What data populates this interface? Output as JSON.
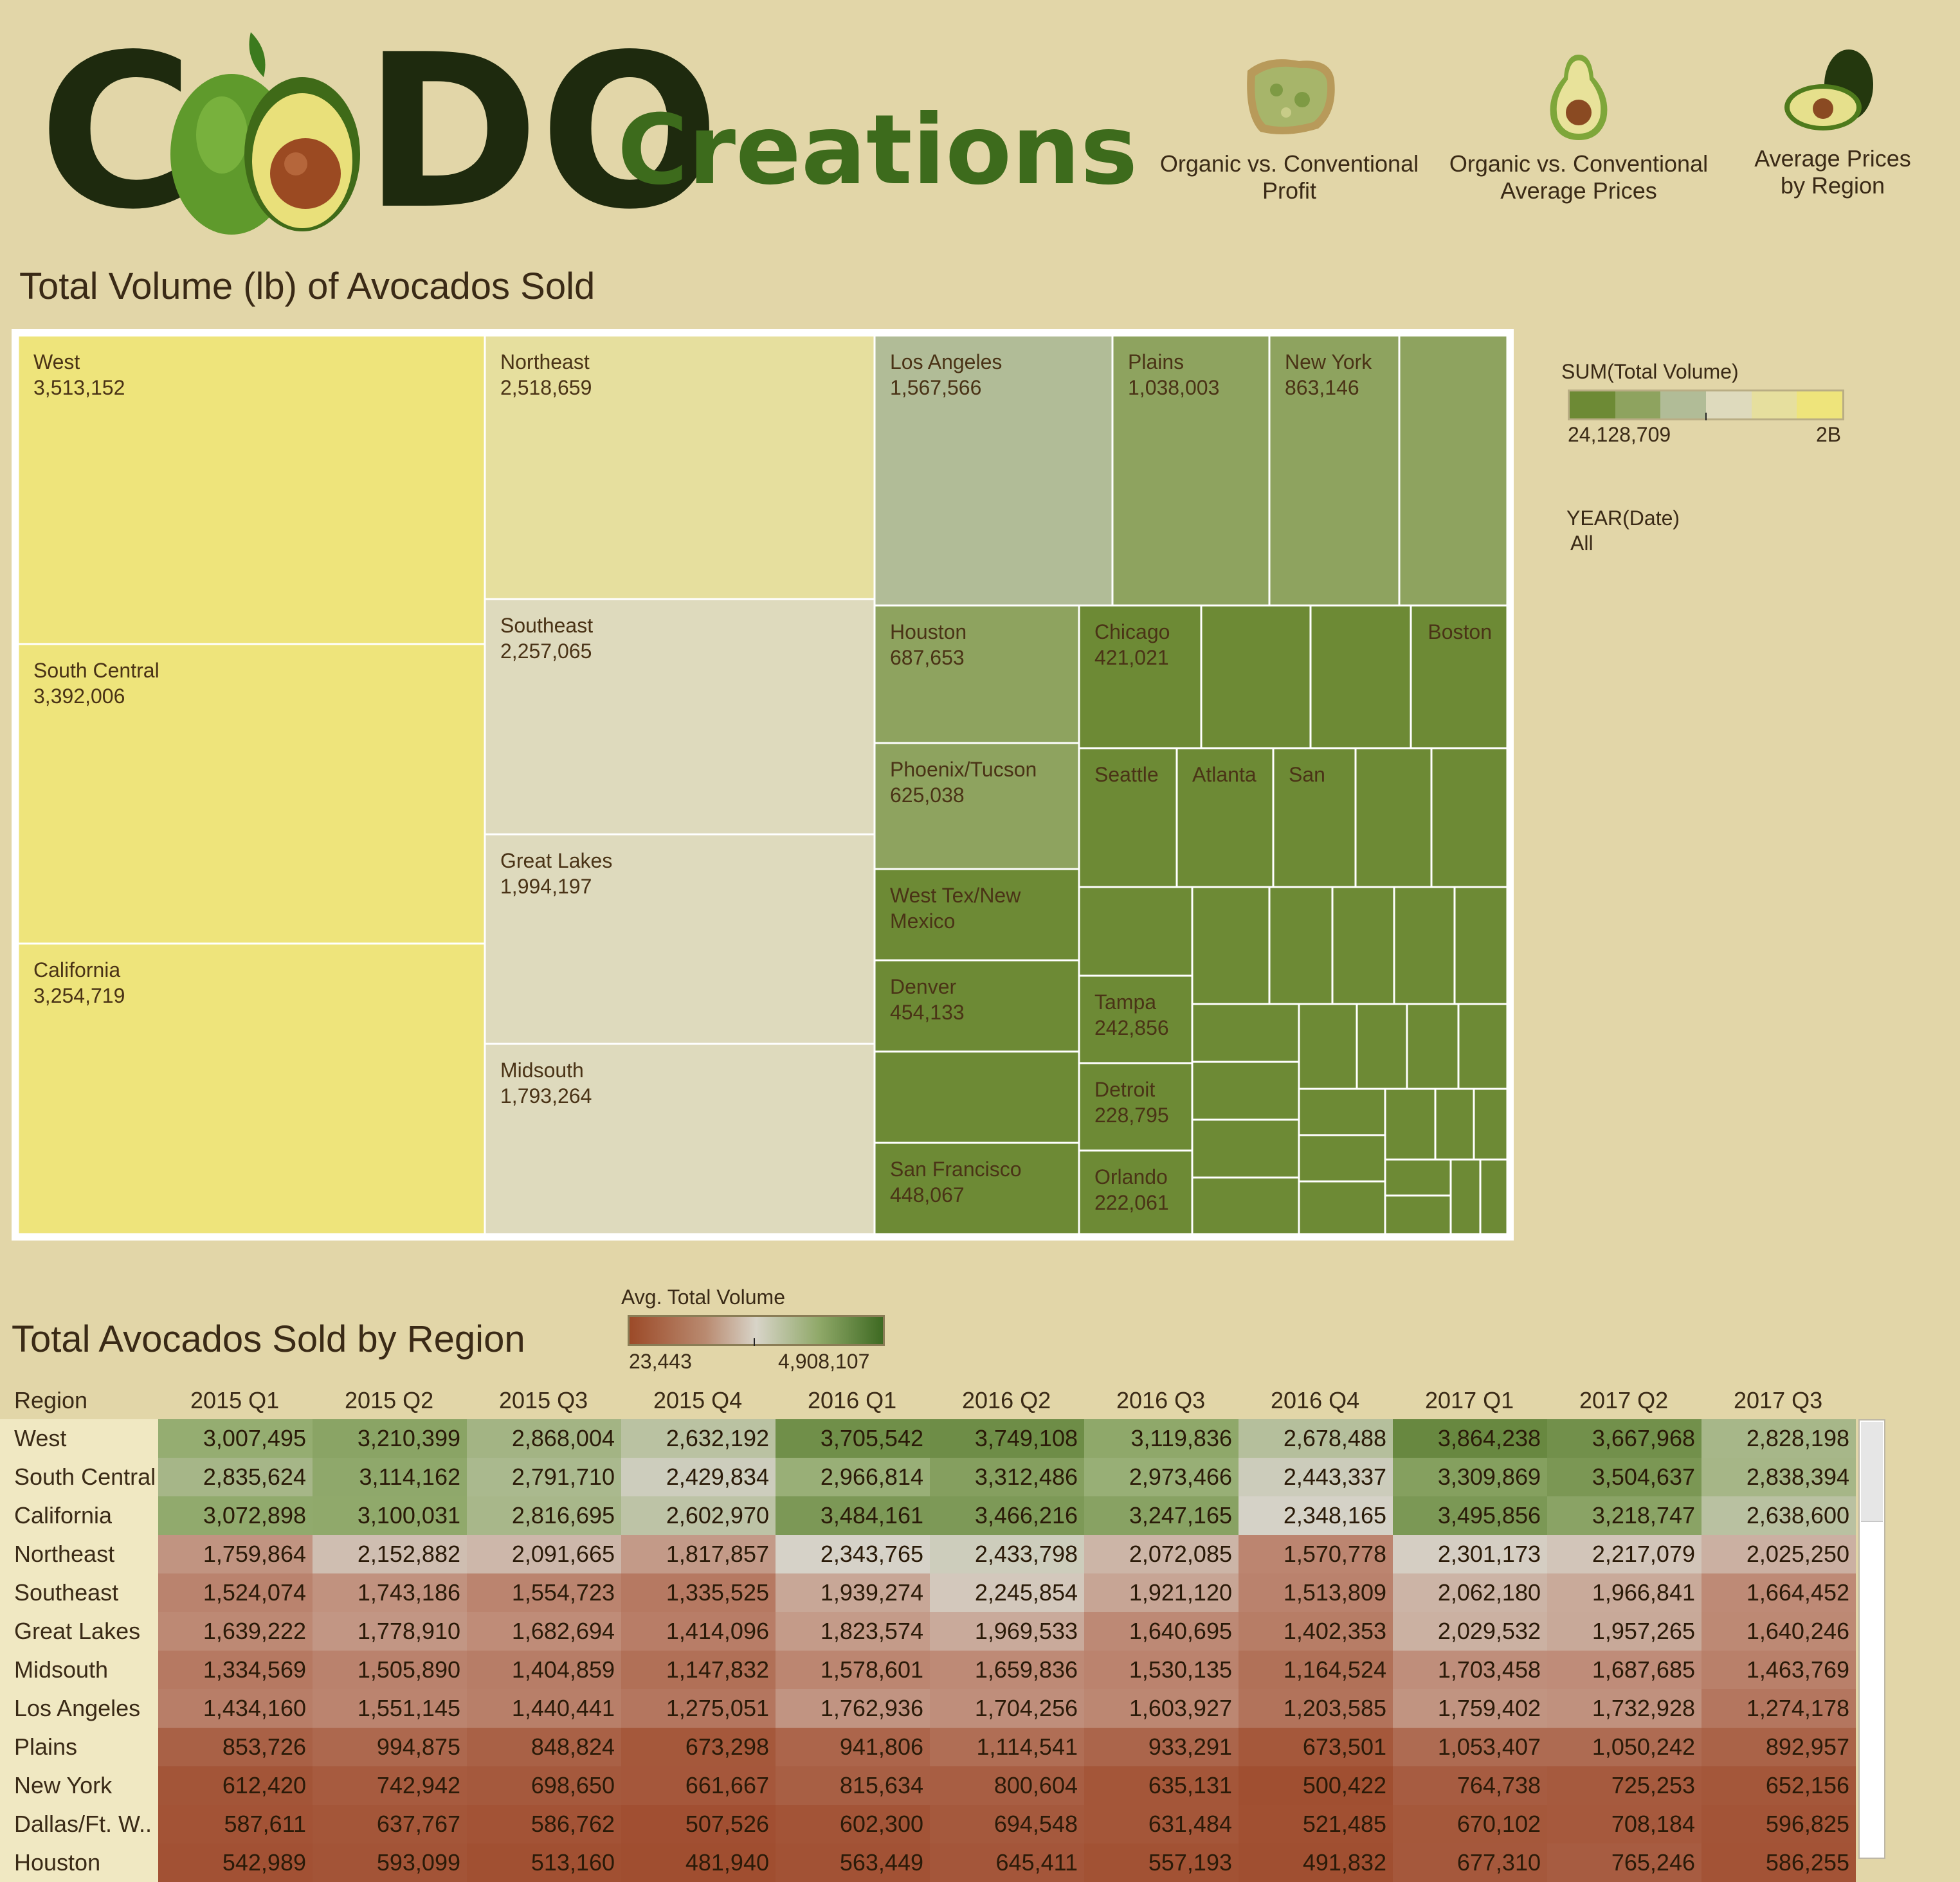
{
  "brand": {
    "logo_word1": "C",
    "logo_word2": "DO",
    "logo_word3": "Creations"
  },
  "nav": [
    {
      "label_line1": "Organic vs. Conventional",
      "label_line2": "Profit",
      "icon": "avocado-toast-icon"
    },
    {
      "label_line1": "Organic vs. Conventional",
      "label_line2": "Average Prices",
      "icon": "half-avocado-icon"
    },
    {
      "label_line1": "Average Prices",
      "label_line2": "by Region",
      "icon": "avocado-pair-icon"
    }
  ],
  "treemap_title": "Total Volume (lb) of Avocados Sold",
  "volume_legend": {
    "title": "SUM(Total Volume)",
    "min": "24,128,709",
    "max": "2B",
    "colors": [
      "#6d8a35",
      "#8ea35f",
      "#b1bc97",
      "#dedabd",
      "#e6df9e",
      "#eee47b"
    ]
  },
  "year_filter": {
    "label": "YEAR(Date)",
    "value": "All"
  },
  "heatmap_title": "Total Avocados Sold by Region",
  "avg_legend": {
    "title": "Avg. Total Volume",
    "min": "23,443",
    "max": "4,908,107"
  },
  "chart_data": [
    {
      "type": "treemap",
      "title": "Total Volume (lb) of Avocados Sold",
      "colors": {
        "lightest": "#eee47b",
        "light": "#e6df9e",
        "pale": "#dedabd",
        "mid": "#b1bc97",
        "olive": "#8ea35f",
        "dark": "#6d8a35"
      },
      "labeled_tiles": [
        {
          "name": "West",
          "value": "3,513,152",
          "color": "lightest"
        },
        {
          "name": "South Central",
          "value": "3,392,006",
          "color": "lightest"
        },
        {
          "name": "California",
          "value": "3,254,719",
          "color": "lightest"
        },
        {
          "name": "Northeast",
          "value": "2,518,659",
          "color": "light"
        },
        {
          "name": "Southeast",
          "value": "2,257,065",
          "color": "pale"
        },
        {
          "name": "Great Lakes",
          "value": "1,994,197",
          "color": "pale"
        },
        {
          "name": "Midsouth",
          "value": "1,793,264",
          "color": "pale"
        },
        {
          "name": "Los Angeles",
          "value": "1,567,566",
          "color": "mid"
        },
        {
          "name": "Plains",
          "value": "1,038,003",
          "color": "olive"
        },
        {
          "name": "New York",
          "value": "863,146",
          "color": "olive"
        },
        {
          "name": "Houston",
          "value": "687,653",
          "color": "olive"
        },
        {
          "name": "Phoenix/Tucson",
          "value": "625,038",
          "color": "olive"
        },
        {
          "name": "West Tex/New Mexico",
          "value": "",
          "color": "dark"
        },
        {
          "name": "Denver",
          "value": "454,133",
          "color": "dark"
        },
        {
          "name": "San Francisco",
          "value": "448,067",
          "color": "dark"
        },
        {
          "name": "Chicago",
          "value": "421,021",
          "color": "dark"
        },
        {
          "name": "Boston",
          "value": "",
          "color": "dark"
        },
        {
          "name": "Seattle",
          "value": "",
          "color": "dark"
        },
        {
          "name": "Atlanta",
          "value": "",
          "color": "dark"
        },
        {
          "name": "San",
          "value": "",
          "color": "dark"
        },
        {
          "name": "Tampa",
          "value": "242,856",
          "color": "dark"
        },
        {
          "name": "Detroit",
          "value": "228,795",
          "color": "dark"
        },
        {
          "name": "Orlando",
          "value": "222,061",
          "color": "dark"
        }
      ]
    },
    {
      "type": "heatmap",
      "title": "Total Avocados Sold by Region",
      "row_header": "Region",
      "columns": [
        "2015 Q1",
        "2015 Q2",
        "2015 Q3",
        "2015 Q4",
        "2016 Q1",
        "2016 Q2",
        "2016 Q3",
        "2016 Q4",
        "2017 Q1",
        "2017 Q2",
        "2017 Q3"
      ],
      "rows": [
        {
          "region": "West",
          "values": [
            "3,007,495",
            "3,210,399",
            "2,868,004",
            "2,632,192",
            "3,705,542",
            "3,749,108",
            "3,119,836",
            "2,678,488",
            "3,864,238",
            "3,667,968",
            "2,828,198"
          ]
        },
        {
          "region": "South Central",
          "values": [
            "2,835,624",
            "3,114,162",
            "2,791,710",
            "2,429,834",
            "2,966,814",
            "3,312,486",
            "2,973,466",
            "2,443,337",
            "3,309,869",
            "3,504,637",
            "2,838,394"
          ]
        },
        {
          "region": "California",
          "values": [
            "3,072,898",
            "3,100,031",
            "2,816,695",
            "2,602,970",
            "3,484,161",
            "3,466,216",
            "3,247,165",
            "2,348,165",
            "3,495,856",
            "3,218,747",
            "2,638,600"
          ]
        },
        {
          "region": "Northeast",
          "values": [
            "1,759,864",
            "2,152,882",
            "2,091,665",
            "1,817,857",
            "2,343,765",
            "2,433,798",
            "2,072,085",
            "1,570,778",
            "2,301,173",
            "2,217,079",
            "2,025,250"
          ]
        },
        {
          "region": "Southeast",
          "values": [
            "1,524,074",
            "1,743,186",
            "1,554,723",
            "1,335,525",
            "1,939,274",
            "2,245,854",
            "1,921,120",
            "1,513,809",
            "2,062,180",
            "1,966,841",
            "1,664,452"
          ]
        },
        {
          "region": "Great Lakes",
          "values": [
            "1,639,222",
            "1,778,910",
            "1,682,694",
            "1,414,096",
            "1,823,574",
            "1,969,533",
            "1,640,695",
            "1,402,353",
            "2,029,532",
            "1,957,265",
            "1,640,246"
          ]
        },
        {
          "region": "Midsouth",
          "values": [
            "1,334,569",
            "1,505,890",
            "1,404,859",
            "1,147,832",
            "1,578,601",
            "1,659,836",
            "1,530,135",
            "1,164,524",
            "1,703,458",
            "1,687,685",
            "1,463,769"
          ]
        },
        {
          "region": "Los Angeles",
          "values": [
            "1,434,160",
            "1,551,145",
            "1,440,441",
            "1,275,051",
            "1,762,936",
            "1,704,256",
            "1,603,927",
            "1,203,585",
            "1,759,402",
            "1,732,928",
            "1,274,178"
          ]
        },
        {
          "region": "Plains",
          "values": [
            "853,726",
            "994,875",
            "848,824",
            "673,298",
            "941,806",
            "1,114,541",
            "933,291",
            "673,501",
            "1,053,407",
            "1,050,242",
            "892,957"
          ]
        },
        {
          "region": "New York",
          "values": [
            "612,420",
            "742,942",
            "698,650",
            "661,667",
            "815,634",
            "800,604",
            "635,131",
            "500,422",
            "764,738",
            "725,253",
            "652,156"
          ]
        },
        {
          "region": "Dallas/Ft. W..",
          "values": [
            "587,611",
            "637,767",
            "586,762",
            "507,526",
            "602,300",
            "694,548",
            "631,484",
            "521,485",
            "670,102",
            "708,184",
            "596,825"
          ]
        },
        {
          "region": "Houston",
          "values": [
            "542,989",
            "593,099",
            "513,160",
            "481,940",
            "563,449",
            "645,411",
            "557,193",
            "491,832",
            "677,310",
            "765,246",
            "586,255"
          ]
        }
      ]
    }
  ]
}
